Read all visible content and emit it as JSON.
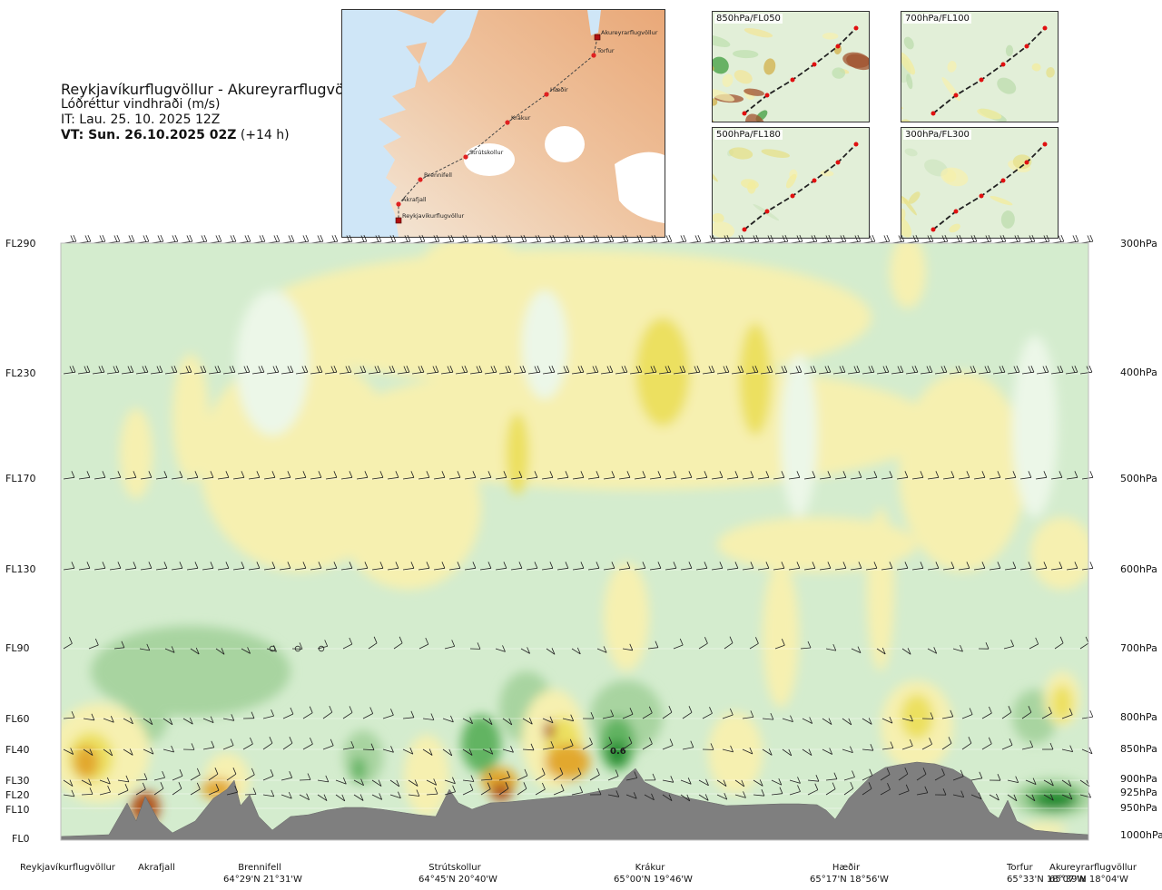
{
  "header": {
    "route": "Reykjavíkurflugvöllur - Akureyrarflugvöllur",
    "parameter": "Lóðréttur vindhraði (m/s)",
    "issue_time": "IT: Lau. 25. 10. 2025 12Z",
    "valid_time": "VT: Sun. 26.10.2025 02Z",
    "lead_time": "(+14 h)"
  },
  "route_map": {
    "points": [
      {
        "name": "Akureyrarflugvöllur",
        "kind": "airport"
      },
      {
        "name": "Torfur",
        "kind": "waypoint"
      },
      {
        "name": "Hæðir",
        "kind": "waypoint"
      },
      {
        "name": "Krákur",
        "kind": "waypoint"
      },
      {
        "name": "Strútskollur",
        "kind": "waypoint"
      },
      {
        "name": "Brennifell",
        "kind": "waypoint"
      },
      {
        "name": "Akrafjall",
        "kind": "waypoint"
      },
      {
        "name": "Reykjavíkurflugvöllur",
        "kind": "airport"
      }
    ]
  },
  "level_maps": [
    {
      "label": "850hPa/FL050"
    },
    {
      "label": "700hPa/FL100"
    },
    {
      "label": "500hPa/FL180"
    },
    {
      "label": "300hPa/FL300"
    }
  ],
  "chart_data": {
    "type": "heatmap",
    "title": "Lóðréttur vindhraði (m/s)",
    "x_axis": "distance along route (Reykjavíkurflugvöllur → Akureyrarflugvöllur)",
    "y_axis_left": [
      "FL290",
      "FL230",
      "FL170",
      "FL130",
      "FL90",
      "FL60",
      "FL40",
      "FL30",
      "FL20",
      "FL10",
      "FL0"
    ],
    "y_axis_right": [
      "300hPa",
      "400hPa",
      "500hPa",
      "600hPa",
      "700hPa",
      "800hPa",
      "850hPa",
      "900hPa",
      "925hPa",
      "950hPa",
      "1000hPa"
    ],
    "annotation": "0.6",
    "waypoints": [
      {
        "name": "Reykjavíkurflugvöllur",
        "coords": ""
      },
      {
        "name": "Akrafjall",
        "coords": ""
      },
      {
        "name": "Brennifell",
        "coords": "64°29'N 21°31'W"
      },
      {
        "name": "Strútskollur",
        "coords": "64°45'N 20°40'W"
      },
      {
        "name": "Krákur",
        "coords": "65°00'N 19°46'W"
      },
      {
        "name": "Hæðir",
        "coords": "65°17'N 18°56'W"
      },
      {
        "name": "Torfur",
        "coords": "65°33'N 18°07'W"
      },
      {
        "name": "Akureyrarflugvöllur",
        "coords": "65°39'N 18°04'W"
      }
    ],
    "colors": {
      "weak_down": "#d4ecce",
      "mod_down": "#a8d4a0",
      "strong_down": "#62b462",
      "very_strong_down": "#1f8a2e",
      "weak_up": "#f6f0b0",
      "mod_up": "#ece060",
      "strong_up": "#e2a82e",
      "very_strong_up": "#b0541e",
      "terrain": "#7f7f7f"
    }
  }
}
